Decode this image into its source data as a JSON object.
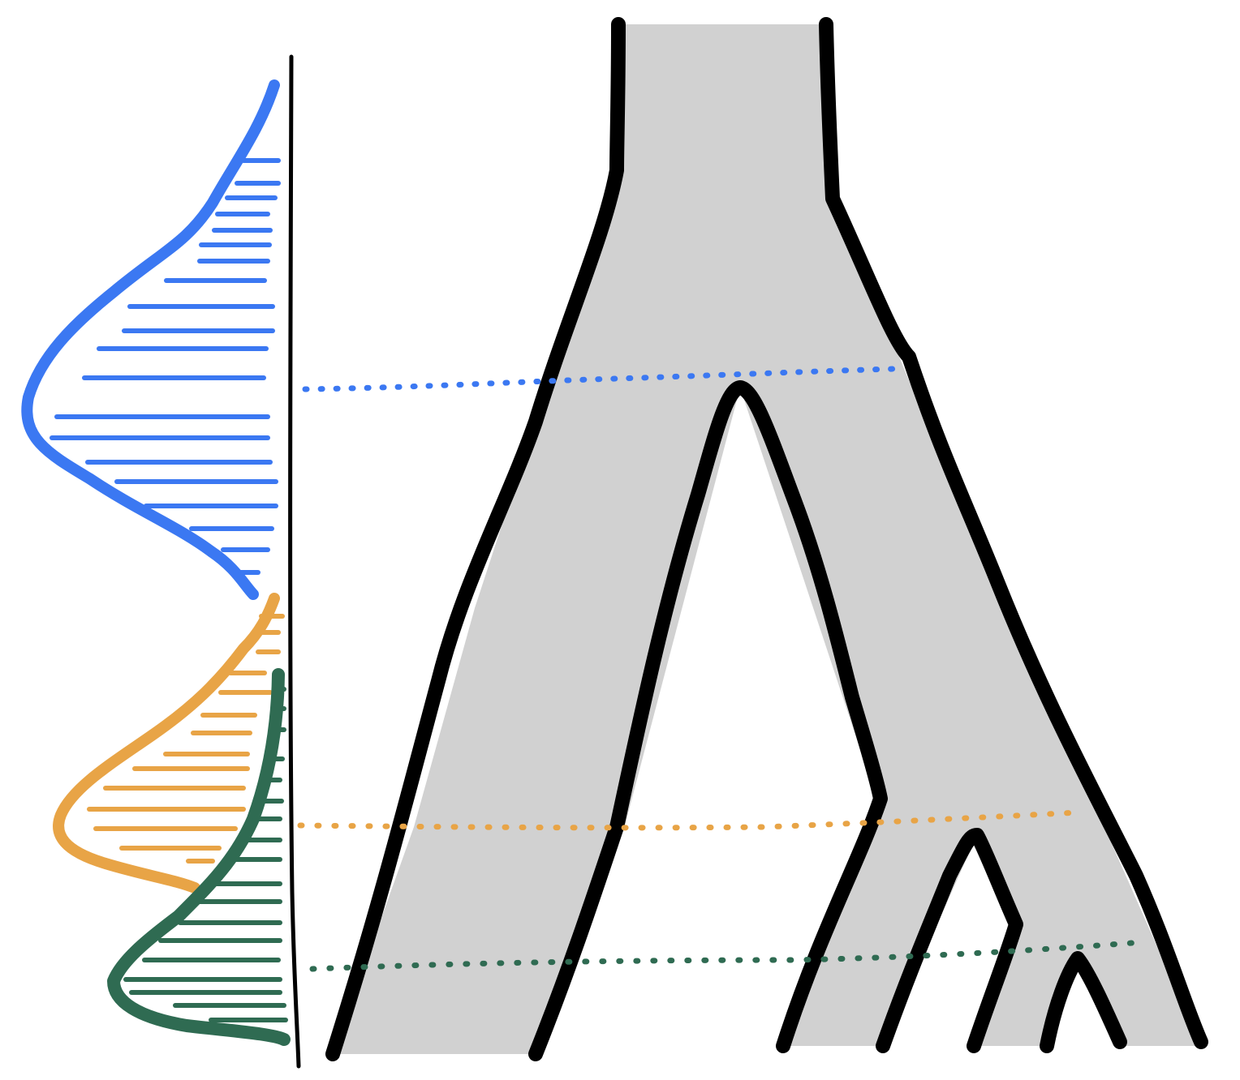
{
  "diagram": {
    "kind": "species-tree-with-coalescence-time-distributions",
    "colors": {
      "background": "#ffffff",
      "outline": "#000000",
      "tree_fill": "#d1d1d1",
      "root_split_distribution": "#3b78f2",
      "middle_split_distribution": "#e8a446",
      "tip_split_distribution": "#2f6b52"
    },
    "distributions": [
      {
        "id": "root-split",
        "color_key": "root_split_distribution",
        "connects_to": "root-split-node"
      },
      {
        "id": "middle-split",
        "color_key": "middle_split_distribution",
        "connects_to": "middle-split-node"
      },
      {
        "id": "tip-split",
        "color_key": "tip_split_distribution",
        "connects_to": "tip-split-node"
      }
    ],
    "tree_tips": 4
  }
}
